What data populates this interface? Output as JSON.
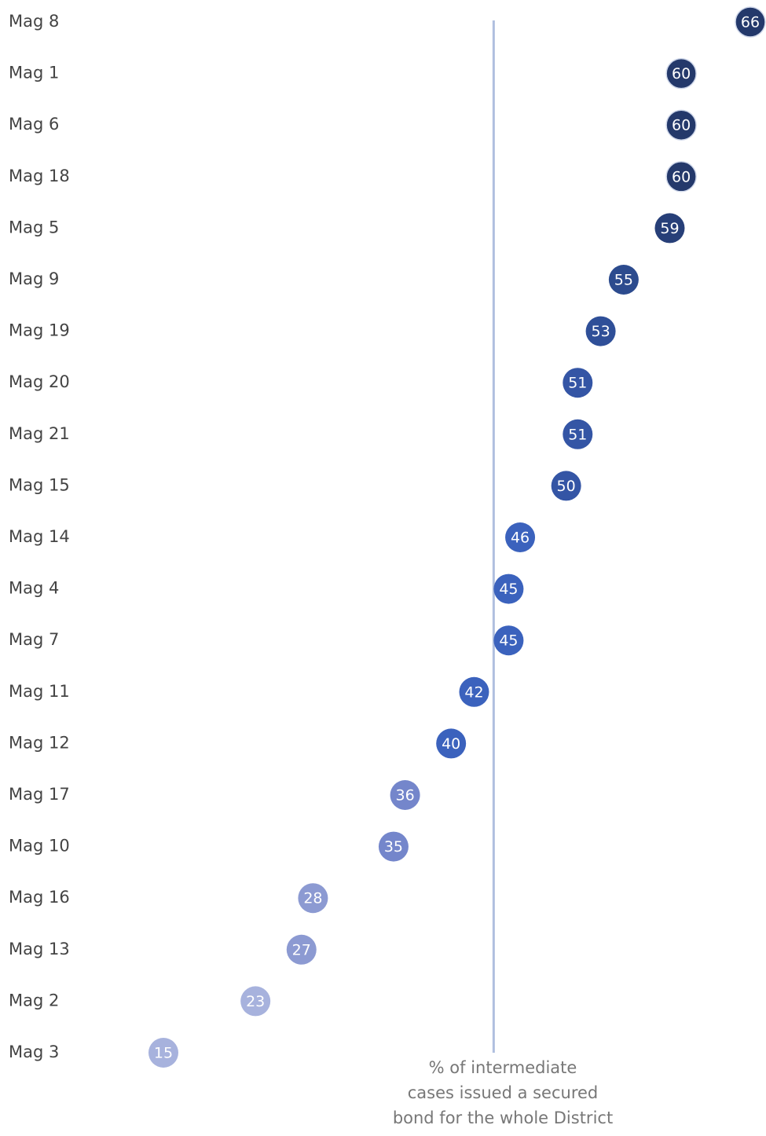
{
  "chart_data": {
    "type": "dot",
    "categories": [
      "Mag 8",
      "Mag 1",
      "Mag 6",
      "Mag 18",
      "Mag 5",
      "Mag 9",
      "Mag 19",
      "Mag 20",
      "Mag 21",
      "Mag 15",
      "Mag 14",
      "Mag 4",
      "Mag 7",
      "Mag 11",
      "Mag 12",
      "Mag 17",
      "Mag 10",
      "Mag 16",
      "Mag 13",
      "Mag 2",
      "Mag 3"
    ],
    "values": [
      66,
      60,
      60,
      60,
      59,
      55,
      53,
      51,
      51,
      50,
      46,
      45,
      45,
      42,
      40,
      36,
      35,
      28,
      27,
      23,
      15
    ],
    "colors": [
      "#24396b",
      "#24396b",
      "#24396b",
      "#24396b",
      "#273f78",
      "#2c4b8e",
      "#2f4f98",
      "#3455a5",
      "#3455a5",
      "#3455a5",
      "#3b62bd",
      "#3b62bd",
      "#3b62bd",
      "#3b62bd",
      "#3b62bd",
      "#7486cb",
      "#7486cb",
      "#8c9ad2",
      "#8c9ad2",
      "#a7b2dd",
      "#a7b2dd"
    ],
    "reference_line": {
      "value": 43.7,
      "color": "#b0bfdf",
      "label": [
        "% of intermediate",
        "cases issued a secured",
        "bond for the whole District"
      ]
    }
  }
}
